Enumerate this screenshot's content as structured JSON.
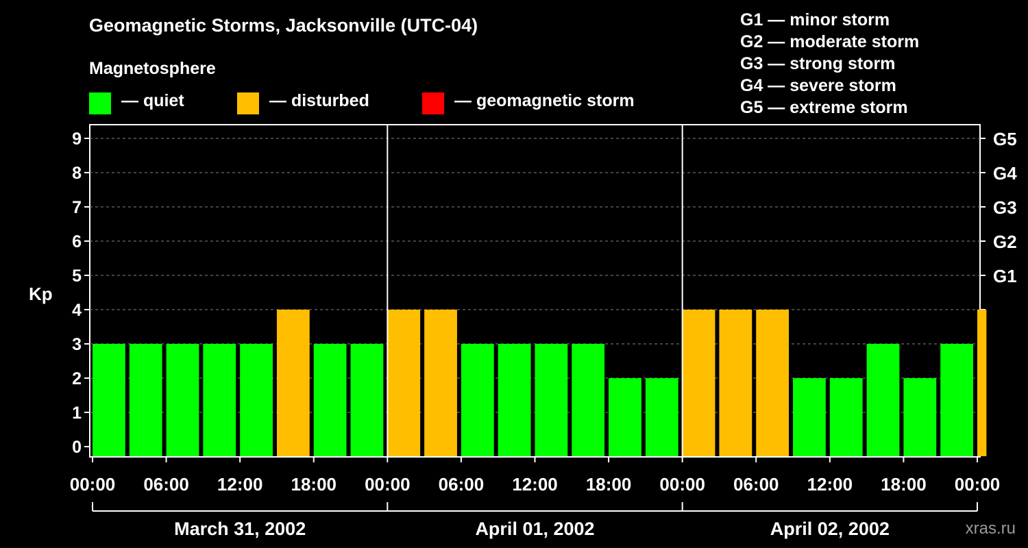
{
  "title": "Geomagnetic Storms, Jacksonville (UTC-04)",
  "subtitle": "Magnetosphere",
  "legend": [
    {
      "label": "— quiet",
      "color": "#00ff00"
    },
    {
      "label": "— disturbed",
      "color": "#ffbf00"
    },
    {
      "label": "— geomagnetic storm",
      "color": "#ff0000"
    }
  ],
  "g_scale": [
    "G1 — minor storm",
    "G2 — moderate storm",
    "G3 — strong storm",
    "G4 — severe storm",
    "G5 — extreme storm"
  ],
  "watermark": "xras.ru",
  "chart_data": {
    "type": "bar",
    "title": "Geomagnetic Storms, Jacksonville (UTC-04)",
    "ylabel": "Kp",
    "ylim": [
      0,
      9
    ],
    "yticks": [
      0,
      1,
      2,
      3,
      4,
      5,
      6,
      7,
      8,
      9
    ],
    "right_axis_labels": [
      {
        "kp": 5,
        "label": "G1"
      },
      {
        "kp": 6,
        "label": "G2"
      },
      {
        "kp": 7,
        "label": "G3"
      },
      {
        "kp": 8,
        "label": "G4"
      },
      {
        "kp": 9,
        "label": "G5"
      }
    ],
    "xtick_labels": [
      "00:00",
      "06:00",
      "12:00",
      "18:00",
      "00:00",
      "06:00",
      "12:00",
      "18:00",
      "00:00",
      "06:00",
      "12:00",
      "18:00",
      "00:00"
    ],
    "days": [
      "March 31, 2002",
      "April 01, 2002",
      "April 02, 2002"
    ],
    "hours_per_bar": 3,
    "total_hours": 72,
    "bars": [
      {
        "start_hour": 0,
        "end_hour": 3,
        "kp": 3
      },
      {
        "start_hour": 3,
        "end_hour": 6,
        "kp": 3
      },
      {
        "start_hour": 6,
        "end_hour": 9,
        "kp": 3
      },
      {
        "start_hour": 9,
        "end_hour": 12,
        "kp": 3
      },
      {
        "start_hour": 12,
        "end_hour": 15,
        "kp": 3
      },
      {
        "start_hour": 15,
        "end_hour": 18,
        "kp": 4
      },
      {
        "start_hour": 18,
        "end_hour": 21,
        "kp": 3
      },
      {
        "start_hour": 21,
        "end_hour": 24,
        "kp": 3
      },
      {
        "start_hour": 24,
        "end_hour": 27,
        "kp": 4
      },
      {
        "start_hour": 27,
        "end_hour": 30,
        "kp": 4
      },
      {
        "start_hour": 30,
        "end_hour": 33,
        "kp": 3
      },
      {
        "start_hour": 33,
        "end_hour": 36,
        "kp": 3
      },
      {
        "start_hour": 36,
        "end_hour": 39,
        "kp": 3
      },
      {
        "start_hour": 39,
        "end_hour": 42,
        "kp": 3
      },
      {
        "start_hour": 42,
        "end_hour": 45,
        "kp": 2
      },
      {
        "start_hour": 45,
        "end_hour": 48,
        "kp": 2
      },
      {
        "start_hour": 48,
        "end_hour": 51,
        "kp": 4
      },
      {
        "start_hour": 51,
        "end_hour": 54,
        "kp": 4
      },
      {
        "start_hour": 54,
        "end_hour": 57,
        "kp": 4
      },
      {
        "start_hour": 57,
        "end_hour": 60,
        "kp": 2
      },
      {
        "start_hour": 60,
        "end_hour": 63,
        "kp": 2
      },
      {
        "start_hour": 63,
        "end_hour": 66,
        "kp": 3
      },
      {
        "start_hour": 66,
        "end_hour": 69,
        "kp": 2
      },
      {
        "start_hour": 69,
        "end_hour": 72,
        "kp": 3
      },
      {
        "start_hour": 72,
        "end_hour": 72.3,
        "kp": 4
      }
    ],
    "colors": {
      "quiet": "#00ff00",
      "disturbed": "#ffbf00",
      "storm": "#ff0000"
    },
    "grid": true
  }
}
